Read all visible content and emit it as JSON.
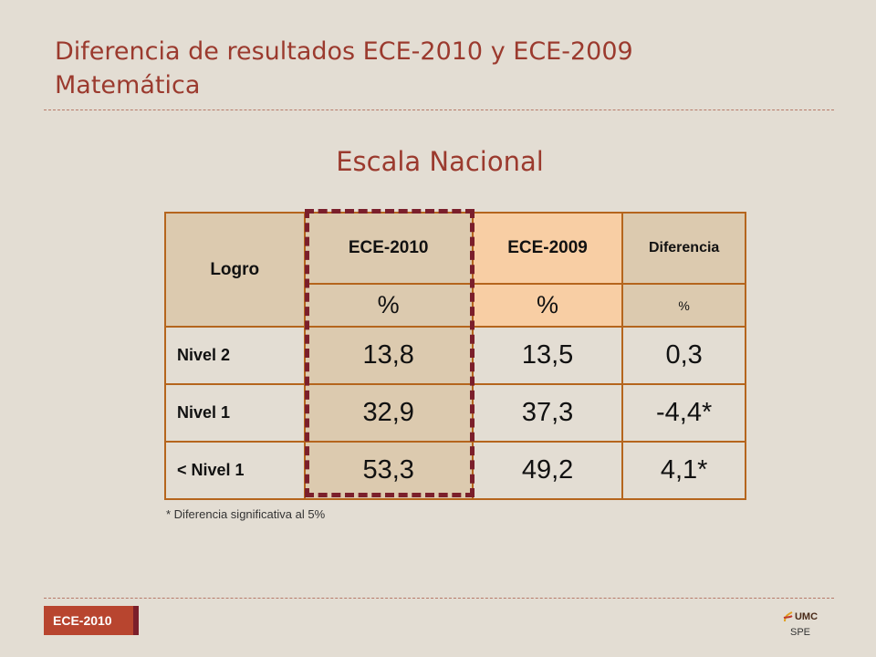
{
  "header": {
    "title_line1": "Diferencia de resultados ECE-2010 y ECE-2009",
    "title_line2": "Matemática"
  },
  "subtitle": "Escala Nacional",
  "table": {
    "headers": {
      "logro": "Logro",
      "ece2010": "ECE-2010",
      "ece2009": "ECE-2009",
      "diferencia": "Diferencia"
    },
    "units": {
      "ece2010": "%",
      "ece2009": "%",
      "diferencia": "%"
    },
    "rows": [
      {
        "label": "Nivel 2",
        "ece2010": "13,8",
        "ece2009": "13,5",
        "diferencia": "0,3"
      },
      {
        "label": "Nivel 1",
        "ece2010": "32,9",
        "ece2009": "37,3",
        "diferencia": "-4,4*"
      },
      {
        "label": "< Nivel 1",
        "ece2010": "53,3",
        "ece2009": "49,2",
        "diferencia": "4,1*"
      }
    ]
  },
  "footnote": "* Diferencia significativa al 5%",
  "footer": {
    "tag": "ECE-2010",
    "logo_text": "UMC",
    "logo_sub": "SPE"
  },
  "colors": {
    "title": "#9b3a2e",
    "table_border": "#b5651d",
    "highlight": "#7b1f2b",
    "ece2009_fill": "#f8cea4",
    "tan_fill": "#dccaaf"
  }
}
